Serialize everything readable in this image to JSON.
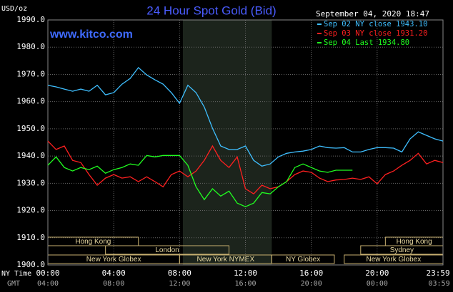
{
  "chart_data": {
    "type": "line",
    "title": "24 Hour Spot Gold (Bid)",
    "y_unit": "USD/oz",
    "website": "www.kitco.com",
    "timestamp": "September 04, 2020 18:47",
    "x_label": "NY Time",
    "x2_label": "GMT",
    "x": [
      0,
      0.5,
      1,
      1.5,
      2,
      2.5,
      3,
      3.5,
      4,
      4.5,
      5,
      5.5,
      6,
      6.5,
      7,
      7.5,
      8,
      8.5,
      9,
      9.5,
      10,
      10.5,
      11,
      11.5,
      12,
      12.5,
      13,
      13.5,
      14,
      14.5,
      15,
      15.5,
      16,
      16.5,
      17,
      17.5,
      18,
      18.5,
      19,
      19.5,
      20,
      20.5,
      21,
      21.5,
      22,
      22.5,
      23,
      23.5,
      24
    ],
    "series": [
      {
        "name": "Sep 02 NY close 1943.10",
        "color": "#3fbfff",
        "values": [
          1966,
          1965.4,
          1964.6,
          1963.8,
          1964.6,
          1963.8,
          1966,
          1962.5,
          1963.3,
          1966.4,
          1968.5,
          1972.5,
          1969.8,
          1968,
          1966.4,
          1963.3,
          1959.4,
          1966,
          1963.3,
          1958,
          1950.2,
          1943.7,
          1942.4,
          1942.4,
          1943.7,
          1938.4,
          1936.3,
          1937.1,
          1939.7,
          1941,
          1941.5,
          1941.8,
          1942.4,
          1943.7,
          1943.1,
          1942.9,
          1943.1,
          1941.5,
          1941.5,
          1942.4,
          1943.1,
          1943.1,
          1942.9,
          1941.5,
          1946.3,
          1948.9,
          1947.6,
          1946.3,
          1945.5
        ]
      },
      {
        "name": "Sep 03 NY close 1931.20",
        "color": "#ff2020",
        "values": [
          1945.5,
          1942.4,
          1943.7,
          1938.4,
          1937.6,
          1933.2,
          1929.3,
          1931.9,
          1933.2,
          1931.9,
          1932.4,
          1930.6,
          1932.4,
          1930.6,
          1928.7,
          1933.2,
          1934.5,
          1932.4,
          1934.5,
          1938.4,
          1943.7,
          1938.4,
          1935.8,
          1939.7,
          1928,
          1926.1,
          1929.3,
          1928,
          1928.7,
          1930.6,
          1933.2,
          1934.5,
          1934,
          1931.9,
          1930.6,
          1931.2,
          1931.4,
          1931.9,
          1931.4,
          1932.4,
          1929.8,
          1933.2,
          1934.5,
          1936.6,
          1938.4,
          1941,
          1937.1,
          1938.4,
          1937.6
        ]
      },
      {
        "name": "Sep 04 Last 1934.80",
        "color": "#20ff20",
        "values": [
          1936.6,
          1939.7,
          1935.8,
          1934.5,
          1935.8,
          1935,
          1936.3,
          1933.7,
          1935,
          1935.8,
          1937.1,
          1936.6,
          1940.2,
          1939.7,
          1940.2,
          1940.2,
          1940.2,
          1936.6,
          1928.7,
          1924,
          1928,
          1925.3,
          1927.1,
          1922.7,
          1921.4,
          1922.7,
          1926.6,
          1926.1,
          1928.7,
          1930.6,
          1935.8,
          1937.1,
          1935.8,
          1934.5,
          1934,
          1934.8,
          1934.8,
          1934.8,
          null,
          null,
          null,
          null,
          null,
          null,
          null,
          null,
          null,
          null,
          null
        ]
      }
    ],
    "xlim": [
      0,
      24
    ],
    "xticks": [
      {
        "value": 0,
        "label": "00:00"
      },
      {
        "value": 4,
        "label": "04:00"
      },
      {
        "value": 8,
        "label": "08:00"
      },
      {
        "value": 12,
        "label": "12:00"
      },
      {
        "value": 16,
        "label": "16:00"
      },
      {
        "value": 20,
        "label": "20:00"
      },
      {
        "value": 23.983,
        "label": "23:59"
      }
    ],
    "x2_tick_labels": [
      "04:00",
      "08:00",
      "12:00",
      "16:00",
      "20:00",
      "00:00",
      "03:59"
    ],
    "ylim": [
      1900,
      1990
    ],
    "yticks": [
      {
        "value": 1900,
        "label": "1900.0"
      },
      {
        "value": 1910,
        "label": "1910.0"
      },
      {
        "value": 1920,
        "label": "1920.0"
      },
      {
        "value": 1930,
        "label": "1930.0"
      },
      {
        "value": 1940,
        "label": "1940.0"
      },
      {
        "value": 1950,
        "label": "1950.0"
      },
      {
        "value": 1960,
        "label": "1960.0"
      },
      {
        "value": 1970,
        "label": "1970.0"
      },
      {
        "value": 1980,
        "label": "1980.0"
      },
      {
        "value": 1990,
        "label": "1990.0"
      }
    ],
    "grid": true,
    "shaded_x": [
      8.2,
      13.6
    ],
    "sessions": [
      {
        "label": "Hong Kong",
        "start": 0,
        "end": 5.5
      },
      {
        "label": "Hong Kong",
        "start": 20.5,
        "end": 24
      },
      {
        "label": "London",
        "start": 3.5,
        "end": 11
      },
      {
        "label": "Sydney",
        "start": 19,
        "end": 24
      },
      {
        "label": "New York Globex",
        "start": 0,
        "end": 8
      },
      {
        "label": "New York NYMEX",
        "start": 8,
        "end": 13.6
      },
      {
        "label": "NY Globex",
        "start": 13.6,
        "end": 17.4
      },
      {
        "label": "New York Globex",
        "start": 18,
        "end": 24
      }
    ]
  }
}
